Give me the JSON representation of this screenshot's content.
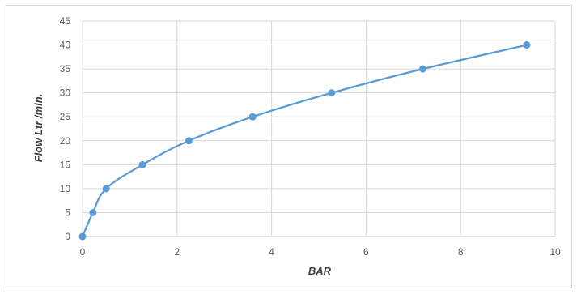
{
  "chart_data": {
    "type": "scatter",
    "mode": "lines+markers",
    "xlabel": "BAR",
    "ylabel": "Flow Ltr /min.",
    "xlim": [
      0,
      10
    ],
    "ylim": [
      0,
      45
    ],
    "xticks": [
      0,
      2,
      4,
      6,
      8,
      10
    ],
    "yticks": [
      0,
      5,
      10,
      15,
      20,
      25,
      30,
      35,
      40,
      45
    ],
    "grid": true,
    "legend": "none",
    "line_color": "#5b9bd5",
    "series": [
      {
        "x": [
          0,
          0.22,
          0.5,
          1.27,
          2.25,
          3.6,
          5.27,
          7.2,
          9.4
        ],
        "y": [
          0,
          5,
          10,
          15,
          20,
          25,
          30,
          35,
          40
        ]
      }
    ]
  }
}
